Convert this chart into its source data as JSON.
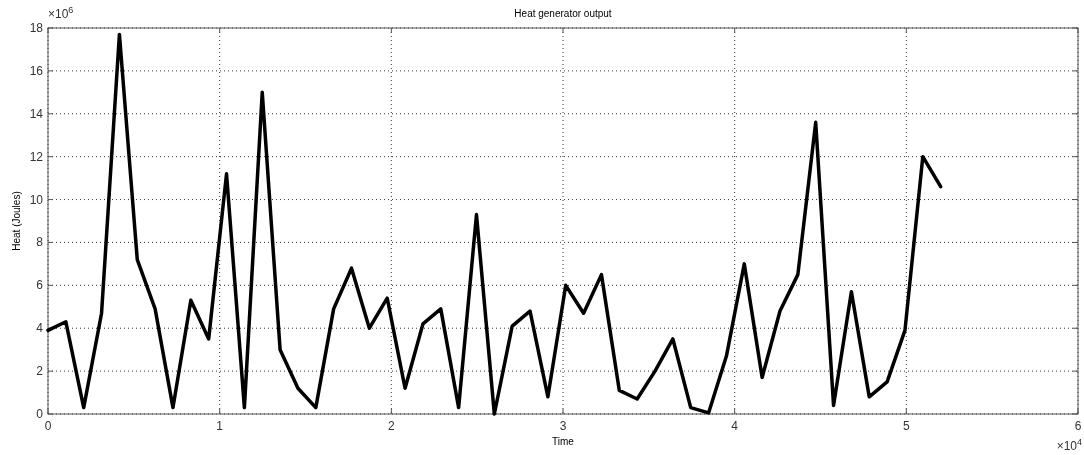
{
  "chart_data": {
    "type": "line",
    "title": "Heat generator output",
    "xlabel": "Time",
    "ylabel": "Heat (Joules)",
    "annotations": [
      "×10$^{6}$",
      "×10$^{4}$"
    ],
    "x": [
      0,
      0.104,
      0.208,
      0.312,
      0.416,
      0.52,
      0.624,
      0.728,
      0.832,
      0.936,
      1.04,
      1.144,
      1.248,
      1.352,
      1.456,
      1.56,
      1.664,
      1.768,
      1.872,
      1.976,
      2.08,
      2.184,
      2.288,
      2.392,
      2.496,
      2.6,
      2.704,
      2.808,
      2.912,
      3.016,
      3.12,
      3.224,
      3.328,
      3.432,
      3.536,
      3.64,
      3.744,
      3.848,
      3.952,
      4.056,
      4.16,
      4.264,
      4.368,
      4.472,
      4.576,
      4.68,
      4.784,
      4.888,
      4.992,
      5.096,
      5.2
    ],
    "series": [
      {
        "color": "#000000",
        "values": [
          3.9,
          4.3,
          0.3,
          4.7,
          17.7,
          7.2,
          4.9,
          0.3,
          5.3,
          3.5,
          11.2,
          0.3,
          15.0,
          3.0,
          1.2,
          0.3,
          4.9,
          6.8,
          4.0,
          5.4,
          1.2,
          4.2,
          4.9,
          0.3,
          9.3,
          0.0,
          4.1,
          4.8,
          0.8,
          6.0,
          4.7,
          6.5,
          1.1,
          0.7,
          2.0,
          3.5,
          0.3,
          0.05,
          2.7,
          7.0,
          1.7,
          4.8,
          6.5,
          13.6,
          0.4,
          5.7,
          0.8,
          1.5,
          3.9,
          12.0,
          10.6
        ]
      }
    ],
    "xlim": [
      0,
      6
    ],
    "xticks": [
      0,
      1,
      2,
      3,
      4,
      5,
      6
    ],
    "ylim": [
      0,
      18
    ],
    "yticks": [
      0,
      2,
      4,
      6,
      8,
      10,
      12,
      14,
      16,
      18
    ],
    "grid": true,
    "marker": "none",
    "line_style": "solid"
  }
}
